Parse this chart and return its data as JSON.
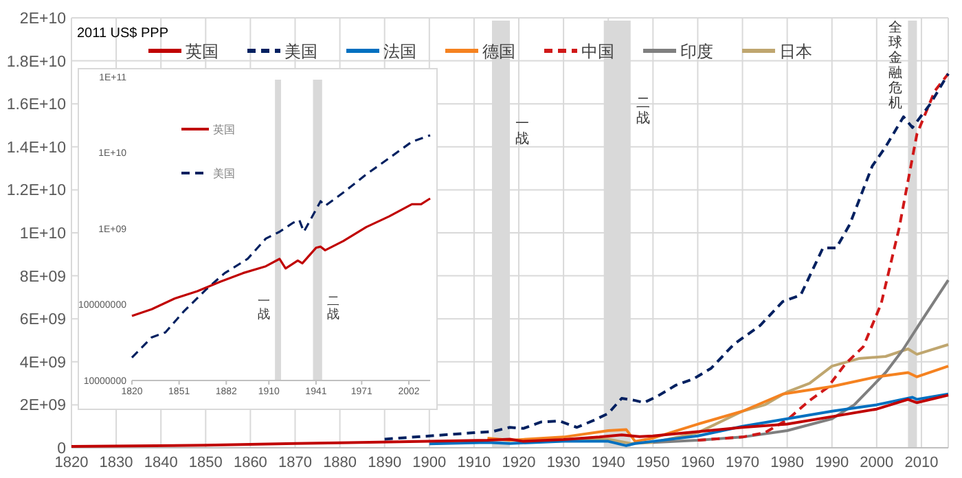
{
  "chart_data": [
    {
      "type": "line",
      "annotations": [
        "2011 US$ PPP"
      ],
      "xlim": [
        1820,
        2016
      ],
      "ylim": [
        0,
        20000000000.0
      ],
      "xticks": [
        1820,
        1830,
        1840,
        1850,
        1860,
        1870,
        1880,
        1890,
        1900,
        1910,
        1920,
        1930,
        1940,
        1950,
        1960,
        1970,
        1980,
        1990,
        2000,
        2010
      ],
      "yticks": [
        0,
        {
          "value": 2000000000.0,
          "label": "2E+09"
        },
        {
          "value": 4000000000.0,
          "label": "4E+09"
        },
        {
          "value": 6000000000.0,
          "label": "6E+09"
        },
        {
          "value": 8000000000.0,
          "label": "8E+09"
        },
        {
          "value": 10000000000.0,
          "label": "1E+10"
        },
        {
          "value": 12000000000.0,
          "label": "1.2E+10"
        },
        {
          "value": 14000000000.0,
          "label": "1.4E+10"
        },
        {
          "value": 16000000000.0,
          "label": "1.6E+10"
        },
        {
          "value": 18000000000.0,
          "label": "1.8E+10"
        },
        {
          "value": 20000000000.0,
          "label": "2E+10"
        }
      ],
      "grid": true,
      "legend": "top",
      "bands": [
        {
          "axis": "x",
          "from": 1914,
          "to": 1918,
          "label": "一战",
          "color": "#d9d9d9"
        },
        {
          "axis": "x",
          "from": 1939,
          "to": 1945,
          "label": "二战",
          "color": "#d9d9d9"
        },
        {
          "axis": "x",
          "from": 2007,
          "to": 2009,
          "label": "全球金融危机",
          "color": "#d9d9d9"
        }
      ],
      "series": [
        {
          "name": "英国",
          "color": "#c00000",
          "line_style": "solid",
          "x": [
            1820,
            1850,
            1870,
            1900,
            1913,
            1918,
            1921,
            1930,
            1938,
            1943,
            1947,
            1950,
            1960,
            1970,
            1980,
            1990,
            2000,
            2007,
            2009,
            2016
          ],
          "values": [
            60000000.0,
            120000000.0,
            200000000.0,
            300000000.0,
            350000000.0,
            400000000.0,
            300000000.0,
            380000000.0,
            500000000.0,
            600000000.0,
            520000000.0,
            550000000.0,
            750000000.0,
            950000000.0,
            1100000000.0,
            1450000000.0,
            1800000000.0,
            2250000000.0,
            2100000000.0,
            2450000000.0
          ]
        },
        {
          "name": "美国",
          "color": "#002060",
          "line_style": "dashed",
          "x": [
            1890,
            1900,
            1910,
            1914,
            1918,
            1921,
            1925,
            1929,
            1933,
            1937,
            1940,
            1943,
            1946,
            1948,
            1951,
            1955,
            1959,
            1963,
            1968,
            1974,
            1979,
            1983,
            1988,
            1991,
            1994,
            1999,
            2002,
            2006,
            2008,
            2012,
            2016
          ],
          "values": [
            400000000.0,
            550000000.0,
            700000000.0,
            750000000.0,
            950000000.0,
            900000000.0,
            1200000000.0,
            1250000000.0,
            950000000.0,
            1300000000.0,
            1600000000.0,
            2300000000.0,
            2200000000.0,
            2100000000.0,
            2400000000.0,
            2900000000.0,
            3200000000.0,
            3700000000.0,
            4800000000.0,
            5700000000.0,
            6800000000.0,
            7100000000.0,
            9300000000.0,
            9300000000.0,
            10400000000.0,
            13100000000.0,
            14000000000.0,
            15400000000.0,
            14900000000.0,
            16000000000.0,
            17400000000.0
          ]
        },
        {
          "name": "法国",
          "color": "#0070c0",
          "line_style": "solid",
          "x": [
            1900,
            1913,
            1918,
            1930,
            1940,
            1944,
            1946,
            1950,
            1960,
            1970,
            1980,
            1990,
            2000,
            2008,
            2009,
            2016
          ],
          "values": [
            180000000.0,
            250000000.0,
            200000000.0,
            300000000.0,
            300000000.0,
            100000000.0,
            200000000.0,
            300000000.0,
            550000000.0,
            1000000000.0,
            1350000000.0,
            1700000000.0,
            2000000000.0,
            2350000000.0,
            2250000000.0,
            2500000000.0
          ]
        },
        {
          "name": "德国",
          "color": "#f58220",
          "line_style": "solid",
          "x": [
            1913,
            1918,
            1930,
            1940,
            1944,
            1946,
            1950,
            1960,
            1970,
            1979,
            1990,
            2000,
            2007,
            2009,
            2016
          ],
          "values": [
            450000000.0,
            350000000.0,
            500000000.0,
            800000000.0,
            850000000.0,
            300000000.0,
            450000000.0,
            1100000000.0,
            1700000000.0,
            2500000000.0,
            2850000000.0,
            3300000000.0,
            3500000000.0,
            3300000000.0,
            3800000000.0
          ]
        },
        {
          "name": "中国",
          "color": "#d01818",
          "line_style": "dashed",
          "x": [
            1960,
            1970,
            1975,
            1980,
            1985,
            1989,
            1993,
            1997,
            2001,
            2005,
            2009,
            2013,
            2016
          ],
          "values": [
            350000000.0,
            500000000.0,
            700000000.0,
            1300000000.0,
            2200000000.0,
            2800000000.0,
            3900000000.0,
            4700000000.0,
            6700000000.0,
            10200000000.0,
            14600000000.0,
            16600000000.0,
            17400000000.0
          ]
        },
        {
          "name": "印度",
          "color": "#7f7f7f",
          "line_style": "solid",
          "x": [
            1950,
            1960,
            1970,
            1980,
            1990,
            1995,
            2002,
            2006,
            2010,
            2016
          ],
          "values": [
            250000000.0,
            350000000.0,
            500000000.0,
            800000000.0,
            1350000000.0,
            2000000000.0,
            3500000000.0,
            4600000000.0,
            5900000000.0,
            7800000000.0
          ]
        },
        {
          "name": "日本",
          "color": "#bfa66f",
          "line_style": "solid",
          "x": [
            1920,
            1940,
            1945,
            1950,
            1960,
            1970,
            1975,
            1980,
            1985,
            1990,
            1996,
            2002,
            2007,
            2009,
            2016
          ],
          "values": [
            250000000.0,
            400000000.0,
            200000000.0,
            250000000.0,
            700000000.0,
            1700000000.0,
            2000000000.0,
            2600000000.0,
            3000000000.0,
            3800000000.0,
            4150000000.0,
            4250000000.0,
            4600000000.0,
            4350000000.0,
            4800000000.0
          ]
        }
      ]
    },
    {
      "type": "line",
      "log": "y",
      "xlim": [
        1820,
        2016
      ],
      "ylim": [
        10000000.0,
        100000000000.0
      ],
      "xticks": [
        1820,
        1851,
        1882,
        1910,
        1941,
        1971,
        2002
      ],
      "yticks": [
        10000000,
        100000000,
        {
          "value": 1000000000.0,
          "label": "1E+09"
        },
        {
          "value": 10000000000.0,
          "label": "1E+10"
        },
        {
          "value": 100000000000.0,
          "label": "1E+11"
        }
      ],
      "legend": "top left",
      "bands": [
        {
          "axis": "x",
          "from": 1914,
          "to": 1918,
          "label": "一战",
          "color": "#d9d9d9"
        },
        {
          "axis": "x",
          "from": 1939,
          "to": 1945,
          "label": "二战",
          "color": "#d9d9d9"
        }
      ],
      "series": [
        {
          "name": "英国",
          "color": "#c00000",
          "line_style": "solid",
          "x": [
            1820,
            1833,
            1848,
            1863,
            1878,
            1893,
            1908,
            1917,
            1921,
            1929,
            1932,
            1941,
            1944,
            1947,
            1959,
            1974,
            1989,
            2004,
            2010,
            2016
          ],
          "values": [
            71000000.0,
            87000000.0,
            120000000.0,
            150000000.0,
            200000000.0,
            260000000.0,
            320000000.0,
            400000000.0,
            300000000.0,
            380000000.0,
            350000000.0,
            560000000.0,
            580000000.0,
            520000000.0,
            690000000.0,
            1050000000.0,
            1450000000.0,
            2100000000.0,
            2100000000.0,
            2500000000.0
          ]
        },
        {
          "name": "美国",
          "color": "#002060",
          "line_style": "dashed",
          "x": [
            1820,
            1833,
            1842,
            1854,
            1869,
            1881,
            1896,
            1908,
            1917,
            1926,
            1930,
            1933,
            1944,
            1947,
            1959,
            1974,
            1989,
            2004,
            2016
          ],
          "values": [
            20000000.0,
            37000000.0,
            43000000.0,
            81000000.0,
            160000000.0,
            260000000.0,
            400000000.0,
            740000000.0,
            910000000.0,
            1200000000.0,
            1300000000.0,
            910000000.0,
            2300000000.0,
            2000000000.0,
            3000000000.0,
            5200000000.0,
            8500000000.0,
            14000000000.0,
            17000000000.0
          ]
        }
      ]
    }
  ]
}
